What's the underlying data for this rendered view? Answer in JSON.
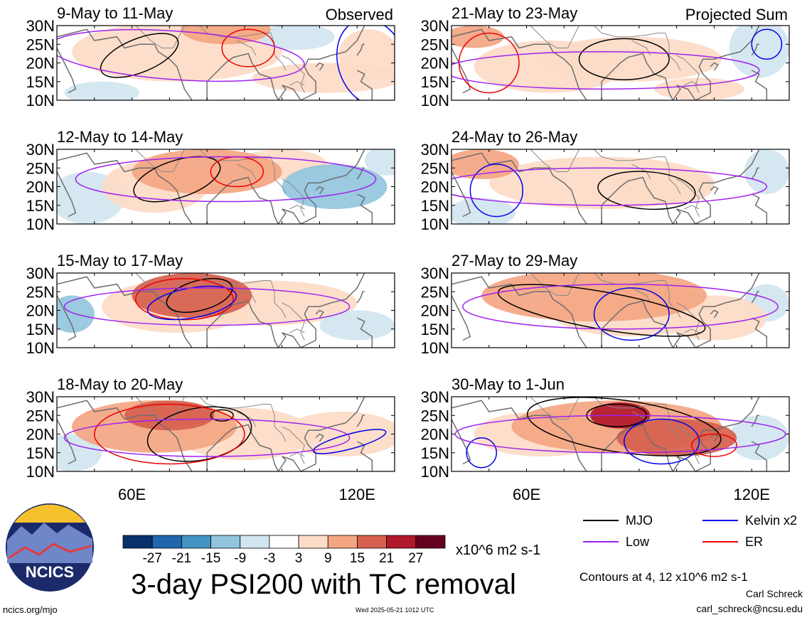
{
  "figure": {
    "title": "3-day PSI200 with TC removal",
    "units": "x10^6 m2 s-1",
    "contours_note": "Contours at 4, 12 x10^6 m2 s-1",
    "author": "Carl Schreck",
    "email": "carl_schreck@ncsu.edu",
    "website": "ncics.org/mjo",
    "timestamp": "Wed 2025-05-21 1012 UTC",
    "logo_text": "NCICS",
    "column_headers": [
      "Observed",
      "Projected Sum"
    ]
  },
  "chart_data": {
    "type": "heatmap",
    "variable": "PSI200 anomaly",
    "lon_range": [
      40,
      130
    ],
    "lat_range": [
      10,
      30
    ],
    "y_ticks": [
      "30N",
      "25N",
      "20N",
      "15N",
      "10N"
    ],
    "x_ticks": [
      {
        "lon": 60,
        "label": "60E"
      },
      {
        "lon": 120,
        "label": "120E"
      }
    ],
    "colorbar": {
      "levels": [
        "-27",
        "-21",
        "-15",
        "-9",
        "-3",
        "3",
        "9",
        "15",
        "21",
        "27"
      ],
      "colors": [
        "#08306b",
        "#2166ac",
        "#4393c3",
        "#92c5de",
        "#d1e5f0",
        "#ffffff",
        "#fddbc7",
        "#f4a582",
        "#d6604d",
        "#b2182b",
        "#67001f"
      ]
    },
    "legend": [
      {
        "name": "MJO",
        "color": "#000000"
      },
      {
        "name": "Kelvin x2",
        "color": "#0000ee"
      },
      {
        "name": "Low",
        "color": "#a020f0"
      },
      {
        "name": "ER",
        "color": "#ee0000"
      }
    ],
    "panels": [
      {
        "label": "9-May to 11-May",
        "tag": "Observed",
        "col": 0,
        "row": 0,
        "blobs": [
          {
            "lon": 72,
            "lat": 23,
            "rlon": 28,
            "rlat": 8,
            "v": 6
          },
          {
            "lon": 85,
            "lat": 29,
            "rlon": 12,
            "rlat": 4,
            "v": 14
          },
          {
            "lon": 104,
            "lat": 27,
            "rlon": 10,
            "rlat": 3.5,
            "v": -7
          },
          {
            "lon": 123,
            "lat": 22,
            "rlon": 8,
            "rlat": 7,
            "v": 5
          },
          {
            "lon": 112,
            "lat": 16,
            "rlon": 20,
            "rlat": 4,
            "v": 4
          },
          {
            "lon": 52,
            "lat": 12,
            "rlon": 10,
            "rlat": 3,
            "v": -5
          }
        ],
        "contours": [
          {
            "color": "#000000",
            "lon": 62,
            "lat": 22,
            "rlon": 11,
            "rlat": 4.5,
            "rot": -22
          },
          {
            "color": "#ee0000",
            "lon": 91,
            "lat": 24,
            "rlon": 7,
            "rlat": 5,
            "rot": 0
          },
          {
            "color": "#a020f0",
            "lon": 72,
            "lat": 22,
            "rlon": 34,
            "rlat": 6.5,
            "rot": 4
          },
          {
            "color": "#0000ee",
            "lon": 124,
            "lat": 20,
            "rlon": 9,
            "rlat": 12,
            "rot": -20
          }
        ]
      },
      {
        "label": "12-May to 14-May",
        "tag": "",
        "col": 0,
        "row": 1,
        "blobs": [
          {
            "lon": 80,
            "lat": 24,
            "rlon": 20,
            "rlat": 6,
            "v": 13
          },
          {
            "lon": 66,
            "lat": 20,
            "rlon": 14,
            "rlat": 7,
            "v": 6
          },
          {
            "lon": 114,
            "lat": 20,
            "rlon": 14,
            "rlat": 6,
            "v": -11
          },
          {
            "lon": 48,
            "lat": 17,
            "rlon": 10,
            "rlat": 7,
            "v": -5
          },
          {
            "lon": 100,
            "lat": 26,
            "rlon": 12,
            "rlat": 4,
            "v": 4
          },
          {
            "lon": 128,
            "lat": 27,
            "rlon": 6,
            "rlat": 4,
            "v": -5
          }
        ],
        "contours": [
          {
            "color": "#000000",
            "lon": 72,
            "lat": 22,
            "rlon": 12,
            "rlat": 5,
            "rot": -18
          },
          {
            "color": "#ee0000",
            "lon": 88,
            "lat": 24,
            "rlon": 7,
            "rlat": 4,
            "rot": 0
          },
          {
            "color": "#a020f0",
            "lon": 85,
            "lat": 22,
            "rlon": 40,
            "rlat": 6,
            "rot": 0
          }
        ]
      },
      {
        "label": "15-May to 17-May",
        "tag": "",
        "col": 0,
        "row": 2,
        "blobs": [
          {
            "lon": 76,
            "lat": 24,
            "rlon": 16,
            "rlat": 6,
            "v": 17
          },
          {
            "lon": 72,
            "lat": 21,
            "rlon": 20,
            "rlat": 7,
            "v": 9
          },
          {
            "lon": 96,
            "lat": 22,
            "rlon": 24,
            "rlat": 6,
            "v": 4
          },
          {
            "lon": 44,
            "lat": 19,
            "rlon": 6,
            "rlat": 5,
            "v": -11
          },
          {
            "lon": 120,
            "lat": 16,
            "rlon": 10,
            "rlat": 4,
            "v": -6
          }
        ],
        "contours": [
          {
            "color": "#000000",
            "lon": 78,
            "lat": 24,
            "rlon": 9,
            "rlat": 4,
            "rot": -15
          },
          {
            "color": "#ee0000",
            "lon": 74,
            "lat": 23,
            "rlon": 13,
            "rlat": 5.5,
            "rot": 0
          },
          {
            "color": "#0000ee",
            "lon": 76,
            "lat": 22,
            "rlon": 12,
            "rlat": 4,
            "rot": -10
          },
          {
            "color": "#a020f0",
            "lon": 80,
            "lat": 21,
            "rlon": 38,
            "rlat": 5,
            "rot": 0
          }
        ]
      },
      {
        "label": "18-May to 20-May",
        "tag": "",
        "col": 0,
        "row": 3,
        "blobs": [
          {
            "lon": 66,
            "lat": 22,
            "rlon": 22,
            "rlat": 7,
            "v": 10
          },
          {
            "lon": 70,
            "lat": 25,
            "rlon": 12,
            "rlat": 4,
            "v": 17
          },
          {
            "lon": 90,
            "lat": 20,
            "rlon": 18,
            "rlat": 7,
            "v": 4
          },
          {
            "lon": 116,
            "lat": 20,
            "rlon": 16,
            "rlat": 6,
            "v": 5
          },
          {
            "lon": 44,
            "lat": 15,
            "rlon": 8,
            "rlat": 5,
            "v": -4
          }
        ],
        "contours": [
          {
            "color": "#000000",
            "lon": 78,
            "lat": 20,
            "rlon": 14,
            "rlat": 7,
            "rot": -10
          },
          {
            "color": "#000000",
            "lon": 84,
            "lat": 25,
            "rlon": 3,
            "rlat": 1.5,
            "rot": 0
          },
          {
            "color": "#ee0000",
            "lon": 70,
            "lat": 20,
            "rlon": 20,
            "rlat": 8,
            "rot": 0
          },
          {
            "color": "#0000ee",
            "lon": 118,
            "lat": 18,
            "rlon": 10,
            "rlat": 2,
            "rot": -15
          },
          {
            "color": "#a020f0",
            "lon": 80,
            "lat": 19,
            "rlon": 38,
            "rlat": 5,
            "rot": 0
          }
        ]
      },
      {
        "label": "21-May to 23-May",
        "tag": "Projected Sum",
        "col": 1,
        "row": 0,
        "blobs": [
          {
            "lon": 88,
            "lat": 21,
            "rlon": 24,
            "rlat": 6,
            "v": 9
          },
          {
            "lon": 46,
            "lat": 27,
            "rlon": 8,
            "rlat": 3,
            "v": 15
          },
          {
            "lon": 66,
            "lat": 19,
            "rlon": 20,
            "rlat": 7,
            "v": 5
          },
          {
            "lon": 122,
            "lat": 24,
            "rlon": 8,
            "rlat": 8,
            "v": -6
          },
          {
            "lon": 106,
            "lat": 13,
            "rlon": 12,
            "rlat": 3,
            "v": 5
          }
        ],
        "contours": [
          {
            "color": "#000000",
            "lon": 86,
            "lat": 21,
            "rlon": 12,
            "rlat": 5.5,
            "rot": 0
          },
          {
            "color": "#ee0000",
            "lon": 50,
            "lat": 20,
            "rlon": 8,
            "rlat": 8,
            "rot": 0
          },
          {
            "color": "#a020f0",
            "lon": 80,
            "lat": 18,
            "rlon": 42,
            "rlat": 5,
            "rot": 0
          },
          {
            "color": "#0000ee",
            "lon": 124,
            "lat": 25,
            "rlon": 4,
            "rlat": 4,
            "rot": 0
          }
        ]
      },
      {
        "label": "24-May to 26-May",
        "tag": "",
        "col": 1,
        "row": 1,
        "blobs": [
          {
            "lon": 48,
            "lat": 26,
            "rlon": 10,
            "rlat": 4,
            "v": 15
          },
          {
            "lon": 96,
            "lat": 20,
            "rlon": 14,
            "rlat": 5,
            "v": 9
          },
          {
            "lon": 80,
            "lat": 21,
            "rlon": 30,
            "rlat": 7,
            "v": 5
          },
          {
            "lon": 48,
            "lat": 13,
            "rlon": 9,
            "rlat": 4,
            "v": -5
          },
          {
            "lon": 124,
            "lat": 24,
            "rlon": 6,
            "rlat": 6,
            "v": -6
          }
        ],
        "contours": [
          {
            "color": "#000000",
            "lon": 92,
            "lat": 19,
            "rlon": 13,
            "rlat": 5,
            "rot": 4
          },
          {
            "color": "#0000ee",
            "lon": 52,
            "lat": 19,
            "rlon": 7,
            "rlat": 7,
            "rot": 0
          },
          {
            "color": "#a020f0",
            "lon": 80,
            "lat": 20,
            "rlon": 44,
            "rlat": 5,
            "rot": 0
          }
        ]
      },
      {
        "label": "27-May to 29-May",
        "tag": "",
        "col": 1,
        "row": 2,
        "blobs": [
          {
            "lon": 78,
            "lat": 24,
            "rlon": 30,
            "rlat": 7,
            "v": 14
          },
          {
            "lon": 88,
            "lat": 20,
            "rlon": 22,
            "rlat": 7,
            "v": 8
          },
          {
            "lon": 110,
            "lat": 18,
            "rlon": 14,
            "rlat": 6,
            "v": 5
          },
          {
            "lon": 124,
            "lat": 22,
            "rlon": 6,
            "rlat": 5,
            "v": -4
          }
        ],
        "contours": [
          {
            "color": "#000000",
            "lon": 80,
            "lat": 20,
            "rlon": 28,
            "rlat": 5,
            "rot": 10
          },
          {
            "color": "#0000ee",
            "lon": 88,
            "lat": 19,
            "rlon": 10,
            "rlat": 7,
            "rot": 0
          },
          {
            "color": "#a020f0",
            "lon": 85,
            "lat": 21,
            "rlon": 42,
            "rlat": 6,
            "rot": 0
          }
        ]
      },
      {
        "label": "30-May to 1-Jun",
        "tag": "",
        "col": 1,
        "row": 3,
        "blobs": [
          {
            "lon": 84,
            "lat": 22,
            "rlon": 28,
            "rlat": 7,
            "v": 12
          },
          {
            "lon": 85,
            "lat": 25,
            "rlon": 8,
            "rlat": 3.5,
            "v": 23
          },
          {
            "lon": 100,
            "lat": 19,
            "rlon": 16,
            "rlat": 5,
            "v": 17
          },
          {
            "lon": 64,
            "lat": 20,
            "rlon": 18,
            "rlat": 6,
            "v": 5
          },
          {
            "lon": 122,
            "lat": 19,
            "rlon": 8,
            "rlat": 6,
            "v": -4
          }
        ],
        "contours": [
          {
            "color": "#000000",
            "lon": 86,
            "lat": 22,
            "rlon": 26,
            "rlat": 7,
            "rot": 8
          },
          {
            "color": "#000000",
            "lon": 84,
            "lat": 25,
            "rlon": 8,
            "rlat": 3,
            "rot": 0
          },
          {
            "color": "#0000ee",
            "lon": 48,
            "lat": 15,
            "rlon": 4,
            "rlat": 4,
            "rot": 0
          },
          {
            "color": "#0000ee",
            "lon": 96,
            "lat": 18,
            "rlon": 10,
            "rlat": 6,
            "rot": 0
          },
          {
            "color": "#ee0000",
            "lon": 110,
            "lat": 17,
            "rlon": 6,
            "rlat": 3,
            "rot": 0
          },
          {
            "color": "#a020f0",
            "lon": 85,
            "lat": 20,
            "rlon": 44,
            "rlat": 5,
            "rot": 0
          }
        ]
      }
    ]
  }
}
